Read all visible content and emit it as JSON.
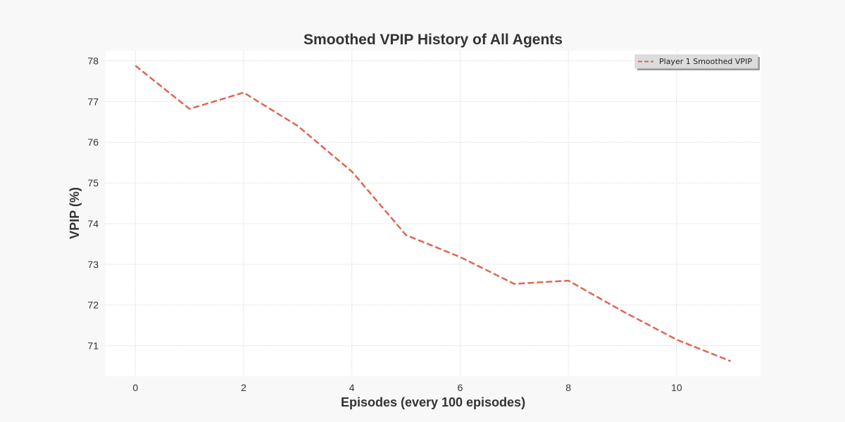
{
  "chart_data": {
    "type": "line",
    "title": "Smoothed VPIP History of All Agents",
    "xlabel": "Episodes (every 100 episodes)",
    "ylabel": "VPIP (%)",
    "xlim": [
      -0.55,
      11.55
    ],
    "ylim": [
      70.25,
      78.25
    ],
    "xticks": [
      0,
      2,
      4,
      6,
      8,
      10
    ],
    "yticks": [
      71,
      72,
      73,
      74,
      75,
      76,
      77,
      78
    ],
    "grid": true,
    "legend_position": "top-right",
    "x": [
      0,
      1,
      2,
      3,
      4,
      5,
      6,
      7,
      8,
      9,
      10,
      11
    ],
    "series": [
      {
        "name": "Player 1 Smoothed VPIP",
        "color": "#e06552",
        "line_style": "dashed",
        "values": [
          77.88,
          76.82,
          77.22,
          76.4,
          75.28,
          73.72,
          73.18,
          72.52,
          72.6,
          71.85,
          71.15,
          70.62
        ]
      }
    ]
  }
}
